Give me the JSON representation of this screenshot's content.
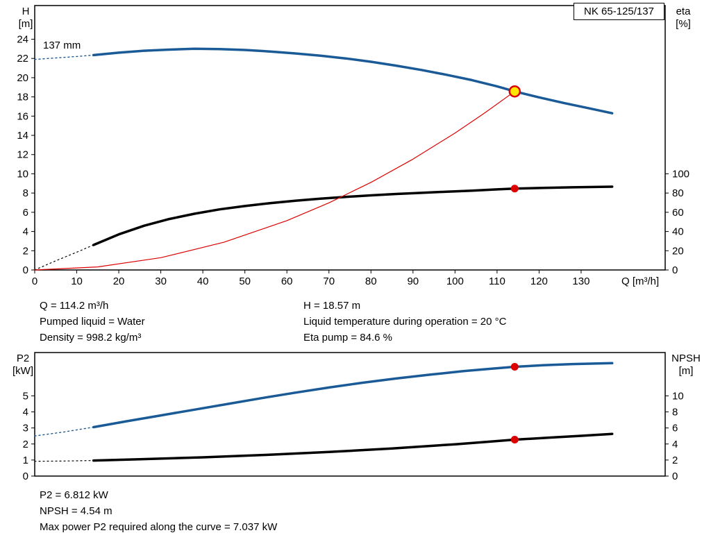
{
  "colors": {
    "curve_blue": "#1a5a96",
    "curve_black": "#000000",
    "curve_red": "#dd0000",
    "duty_yellow": "#ffe600"
  },
  "details_top": {
    "left": [
      "Q = 114.2 m³/h",
      "Pumped liquid = Water",
      "Density = 998.2 kg/m³"
    ],
    "right": [
      "H = 18.57 m",
      "Liquid temperature during operation = 20 °C",
      "Eta pump = 84.6 %"
    ]
  },
  "details_bottom": [
    "P2 = 6.812 kW",
    "NPSH = 4.54 m",
    "Max power P2 required along the curve = 7.037 kW"
  ],
  "chart_data": [
    {
      "id": "hq",
      "type": "line",
      "title": "NK 65-125/137",
      "annotation": "137 mm",
      "xlabel": "Q [m³/h]",
      "x_range": [
        0,
        150
      ],
      "x_ticks": [
        0,
        10,
        20,
        30,
        40,
        50,
        60,
        70,
        80,
        90,
        100,
        110,
        120,
        130
      ],
      "y_left": {
        "label": [
          "H",
          "[m]"
        ],
        "range": [
          0,
          27.5
        ],
        "ticks": [
          0,
          2,
          4,
          6,
          8,
          10,
          12,
          14,
          16,
          18,
          20,
          22,
          24
        ]
      },
      "y_right": {
        "label": [
          "eta",
          "[%]"
        ],
        "ticks": [
          0,
          20,
          40,
          60,
          80,
          100
        ],
        "unit_per_left": 10
      },
      "series": [
        {
          "name": "pump-head-curve-lead",
          "color": "#1a5a96",
          "width": 1.4,
          "dash": "2 4",
          "points": [
            [
              0,
              21.9
            ],
            [
              5,
              22.05
            ],
            [
              10,
              22.2
            ],
            [
              14,
              22.35
            ]
          ]
        },
        {
          "name": "pump-head-curve",
          "color": "#1a5a96",
          "width": 3.5,
          "dash": null,
          "points": [
            [
              14,
              22.35
            ],
            [
              20,
              22.6
            ],
            [
              26,
              22.8
            ],
            [
              32,
              22.92
            ],
            [
              38,
              23.0
            ],
            [
              44,
              22.97
            ],
            [
              50,
              22.88
            ],
            [
              56,
              22.72
            ],
            [
              62,
              22.52
            ],
            [
              68,
              22.28
            ],
            [
              74,
              22.0
            ],
            [
              80,
              21.65
            ],
            [
              86,
              21.25
            ],
            [
              92,
              20.8
            ],
            [
              98,
              20.3
            ],
            [
              104,
              19.75
            ],
            [
              110,
              19.1
            ],
            [
              114.2,
              18.57
            ],
            [
              120,
              17.95
            ],
            [
              126,
              17.35
            ],
            [
              132,
              16.8
            ],
            [
              137.4,
              16.3
            ]
          ]
        },
        {
          "name": "efficiency-curve-lead",
          "color": "#000000",
          "width": 1.2,
          "dash": "2 4",
          "points": [
            [
              0,
              0
            ],
            [
              5,
              0.95
            ],
            [
              10,
              1.85
            ],
            [
              14,
              2.6
            ]
          ]
        },
        {
          "name": "efficiency-curve",
          "color": "#000000",
          "width": 3.5,
          "dash": null,
          "points": [
            [
              14,
              2.6
            ],
            [
              20,
              3.7
            ],
            [
              26,
              4.6
            ],
            [
              32,
              5.3
            ],
            [
              38,
              5.85
            ],
            [
              44,
              6.3
            ],
            [
              50,
              6.65
            ],
            [
              56,
              6.95
            ],
            [
              62,
              7.2
            ],
            [
              68,
              7.42
            ],
            [
              74,
              7.6
            ],
            [
              80,
              7.76
            ],
            [
              86,
              7.9
            ],
            [
              92,
              8.02
            ],
            [
              98,
              8.14
            ],
            [
              104,
              8.25
            ],
            [
              110,
              8.38
            ],
            [
              114.2,
              8.46
            ],
            [
              121,
              8.54
            ],
            [
              128,
              8.6
            ],
            [
              137.4,
              8.66
            ]
          ]
        },
        {
          "name": "system-curve",
          "color": "#dd0000",
          "width": 1.2,
          "dash": null,
          "points": [
            [
              0,
              0
            ],
            [
              15,
              0.32
            ],
            [
              30,
              1.28
            ],
            [
              45,
              2.88
            ],
            [
              60,
              5.13
            ],
            [
              70,
              6.98
            ],
            [
              80,
              9.11
            ],
            [
              90,
              11.53
            ],
            [
              100,
              14.24
            ],
            [
              107,
              16.31
            ],
            [
              114.2,
              18.57
            ]
          ]
        }
      ],
      "markers": [
        {
          "name": "duty-point-head",
          "x": 114.2,
          "y": 18.57,
          "r": 7.5,
          "fill": "#ffe600",
          "stroke": "#dd0000",
          "stroke_width": 2.5
        },
        {
          "name": "duty-point-eta",
          "x": 114.2,
          "y": 8.46,
          "r": 5.5,
          "fill": "#dd0000",
          "stroke": "none",
          "stroke_width": 0
        }
      ]
    },
    {
      "id": "p2npsh",
      "type": "line",
      "title": "",
      "xlabel": "",
      "x_range": [
        0,
        150
      ],
      "x_ticks": [],
      "y_left": {
        "label": [
          "P2",
          "[kW]"
        ],
        "range": [
          0,
          7.7
        ],
        "ticks": [
          0,
          1,
          2,
          3,
          4,
          5
        ]
      },
      "y_right": {
        "label": [
          "NPSH",
          "[m]"
        ],
        "ticks": [
          0,
          2,
          4,
          6,
          8,
          10
        ],
        "unit_per_left": 2
      },
      "series": [
        {
          "name": "p2-curve-lead",
          "color": "#1a5a96",
          "width": 1.4,
          "dash": "2 4",
          "points": [
            [
              0,
              2.5
            ],
            [
              7,
              2.75
            ],
            [
              14,
              3.05
            ]
          ]
        },
        {
          "name": "p2-curve",
          "color": "#1a5a96",
          "width": 3.5,
          "dash": null,
          "points": [
            [
              14,
              3.05
            ],
            [
              22,
              3.42
            ],
            [
              30,
              3.78
            ],
            [
              38,
              4.14
            ],
            [
              46,
              4.5
            ],
            [
              54,
              4.86
            ],
            [
              62,
              5.2
            ],
            [
              70,
              5.52
            ],
            [
              78,
              5.82
            ],
            [
              86,
              6.08
            ],
            [
              94,
              6.32
            ],
            [
              102,
              6.54
            ],
            [
              108,
              6.68
            ],
            [
              114.2,
              6.812
            ],
            [
              121,
              6.91
            ],
            [
              128,
              6.98
            ],
            [
              137.4,
              7.037
            ]
          ]
        },
        {
          "name": "npsh-curve-lead",
          "color": "#000000",
          "width": 1.2,
          "dash": "2 4",
          "points": [
            [
              0,
              0.92
            ],
            [
              7,
              0.94
            ],
            [
              14,
              0.97
            ]
          ]
        },
        {
          "name": "npsh-curve",
          "color": "#000000",
          "width": 3.5,
          "dash": null,
          "points": [
            [
              14,
              0.97
            ],
            [
              25,
              1.05
            ],
            [
              40,
              1.17
            ],
            [
              55,
              1.32
            ],
            [
              70,
              1.5
            ],
            [
              85,
              1.72
            ],
            [
              100,
              1.98
            ],
            [
              108,
              2.14
            ],
            [
              114.2,
              2.27
            ],
            [
              122,
              2.39
            ],
            [
              130,
              2.51
            ],
            [
              137.4,
              2.63
            ]
          ]
        }
      ],
      "markers": [
        {
          "name": "duty-point-p2",
          "x": 114.2,
          "y": 6.812,
          "r": 5.5,
          "fill": "#dd0000",
          "stroke": "none",
          "stroke_width": 0
        },
        {
          "name": "duty-point-npsh",
          "x": 114.2,
          "y": 2.27,
          "r": 5.5,
          "fill": "#dd0000",
          "stroke": "none",
          "stroke_width": 0
        }
      ]
    }
  ]
}
